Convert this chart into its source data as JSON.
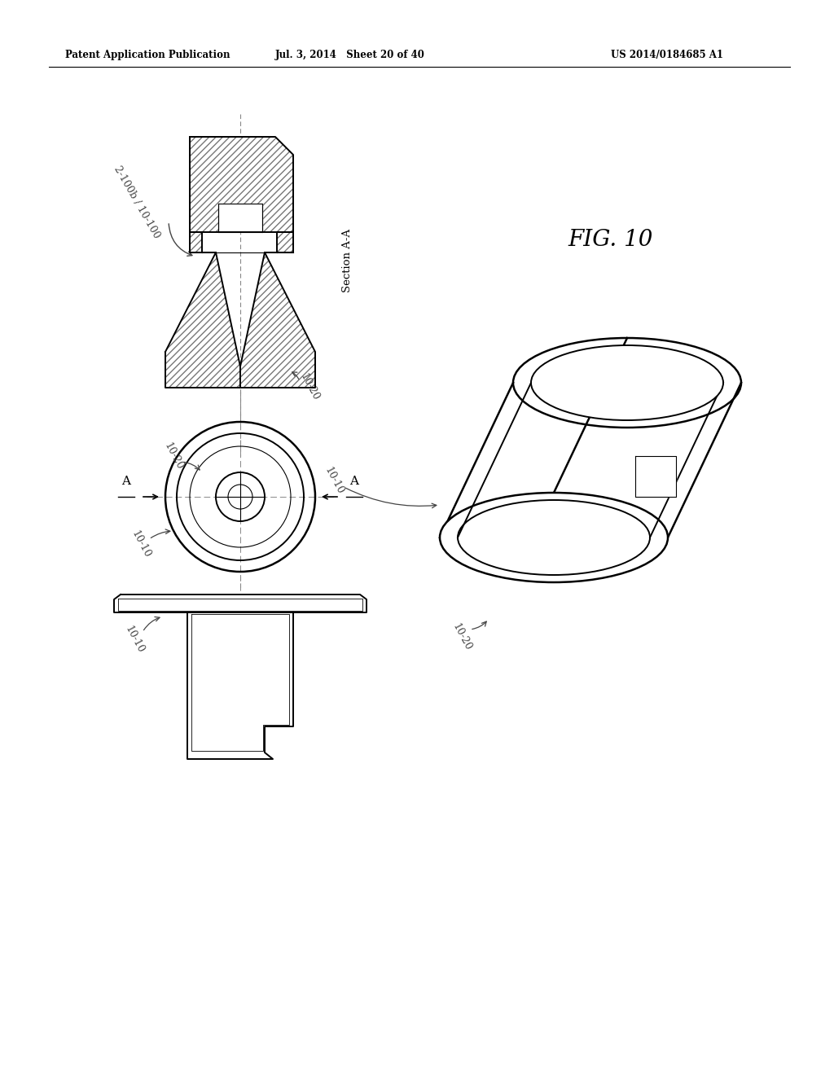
{
  "title": "FIG. 10",
  "header_left": "Patent Application Publication",
  "header_center": "Jul. 3, 2014   Sheet 20 of 40",
  "header_right": "US 2014/0184685 A1",
  "bg_color": "#ffffff",
  "line_color": "#000000",
  "label_color": "#444444",
  "section_label": "Section A-A",
  "fig_label": "FIG. 10",
  "label_2100b": "2-100b / 10-100",
  "label_1020a": "10-20",
  "label_1020b": "10-20",
  "label_1010a": "10-10",
  "label_1010b": "10-10",
  "label_1010c": "10-10",
  "label_1020c": "10-20"
}
